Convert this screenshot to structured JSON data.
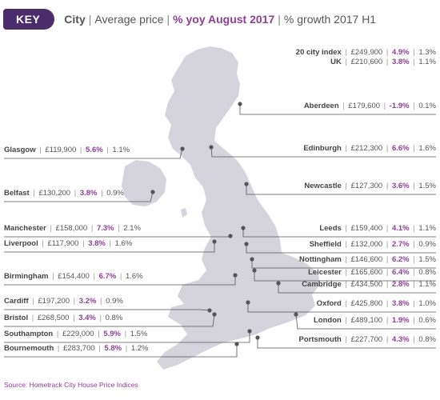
{
  "key": {
    "badge": "KEY",
    "city": "City",
    "avg": "Average price",
    "yoy": "% yoy August 2017",
    "growth": "% growth 2017 H1",
    "sep": "|"
  },
  "colors": {
    "accent": "#8e3e97",
    "badge": "#4a2d6b",
    "land": "#d5d4dd",
    "line": "#555555"
  },
  "cities": [
    {
      "id": "20-city-index",
      "name": "20 city index",
      "price": "£249,900",
      "yoy": "4.9%",
      "h1": "1.3%"
    },
    {
      "id": "uk",
      "name": "UK",
      "price": "£210,600",
      "yoy": "3.8%",
      "h1": "1.1%"
    },
    {
      "id": "aberdeen",
      "name": "Aberdeen",
      "price": "£179,600",
      "yoy": "-1.9%",
      "h1": "0.1%"
    },
    {
      "id": "glasgow",
      "name": "Glasgow",
      "price": "£119,900",
      "yoy": "5.6%",
      "h1": "1.1%"
    },
    {
      "id": "edinburgh",
      "name": "Edinburgh",
      "price": "£212,300",
      "yoy": "6.6%",
      "h1": "1.6%"
    },
    {
      "id": "belfast",
      "name": "Belfast",
      "price": "£130,200",
      "yoy": "3.8%",
      "h1": "0.9%"
    },
    {
      "id": "newcastle",
      "name": "Newcastle",
      "price": "£127,300",
      "yoy": "3.6%",
      "h1": "1.5%"
    },
    {
      "id": "manchester",
      "name": "Manchester",
      "price": "£158,000",
      "yoy": "7.3%",
      "h1": "2.1%"
    },
    {
      "id": "leeds",
      "name": "Leeds",
      "price": "£159,400",
      "yoy": "4.1%",
      "h1": "1.1%"
    },
    {
      "id": "liverpool",
      "name": "Liverpool",
      "price": "£117,900",
      "yoy": "3.8%",
      "h1": "1.6%"
    },
    {
      "id": "sheffield",
      "name": "Sheffield",
      "price": "£132,000",
      "yoy": "2.7%",
      "h1": "0.9%"
    },
    {
      "id": "nottingham",
      "name": "Nottingham",
      "price": "£146,600",
      "yoy": "6.2%",
      "h1": "1.5%"
    },
    {
      "id": "birmingham",
      "name": "Birmingham",
      "price": "£154,400",
      "yoy": "6.7%",
      "h1": "1.6%"
    },
    {
      "id": "leicester",
      "name": "Leicester",
      "price": "£165,600",
      "yoy": "6.4%",
      "h1": "0.8%"
    },
    {
      "id": "cambridge",
      "name": "Cambridge",
      "price": "£434,500",
      "yoy": "2.8%",
      "h1": "1.1%"
    },
    {
      "id": "cardiff",
      "name": "Cardiff",
      "price": "£197,200",
      "yoy": "3.2%",
      "h1": "0.9%"
    },
    {
      "id": "oxford",
      "name": "Oxford",
      "price": "£425,800",
      "yoy": "3.8%",
      "h1": "1.0%"
    },
    {
      "id": "bristol",
      "name": "Bristol",
      "price": "£268,500",
      "yoy": "3.4%",
      "h1": "0.8%"
    },
    {
      "id": "london",
      "name": "London",
      "price": "£489,100",
      "yoy": "1.9%",
      "h1": "0.6%"
    },
    {
      "id": "southampton",
      "name": "Southampton",
      "price": "£229,000",
      "yoy": "5.9%",
      "h1": "1.5%"
    },
    {
      "id": "portsmouth",
      "name": "Portsmouth",
      "price": "£227,700",
      "yoy": "4.3%",
      "h1": "0.8%"
    },
    {
      "id": "bournemouth",
      "name": "Bournemouth",
      "price": "£283,700",
      "yoy": "5.8%",
      "h1": "1.2%"
    }
  ],
  "source": "Source: Hometrack City House Price Indices"
}
